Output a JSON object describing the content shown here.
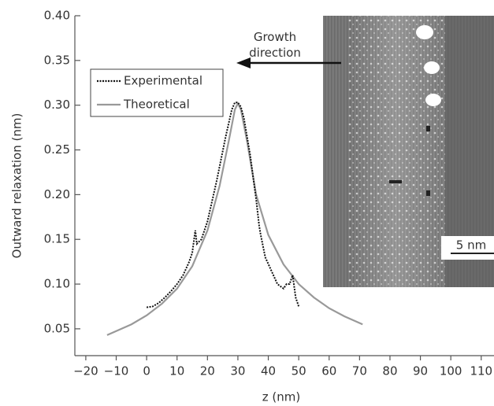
{
  "chart_data": {
    "type": "line",
    "xlabel": "z (nm)",
    "ylabel": "Outward relaxation (nm)",
    "xlim": [
      -23.6,
      114.2
    ],
    "ylim": [
      0.02,
      0.4
    ],
    "xticks": [
      {
        "value": -20,
        "label": "−20"
      },
      {
        "value": -10,
        "label": "−10"
      },
      0,
      10,
      20,
      30,
      40,
      50,
      60,
      70,
      80,
      90,
      100,
      110
    ],
    "yticks": [
      0.05,
      {
        "value": 0.1,
        "label": "0.10"
      },
      0.15,
      {
        "value": 0.2,
        "label": "0.20"
      },
      0.25,
      {
        "value": 0.3,
        "label": "0.30"
      },
      0.35,
      {
        "value": 0.4,
        "label": "0.40"
      }
    ],
    "legend": "upper left",
    "annotations": [
      "Growth direction",
      "5 nm"
    ],
    "series": [
      {
        "name": "Experimental",
        "color": "#111111",
        "style": "dotted",
        "x": [
          0,
          2,
          4,
          6,
          8,
          10,
          12,
          14,
          15,
          16,
          16.5,
          18,
          20,
          23,
          26,
          28,
          29,
          30,
          31,
          32,
          34,
          36,
          37,
          37.5,
          39,
          41,
          43,
          45,
          46,
          47,
          48,
          49,
          50
        ],
        "values": [
          0.074,
          0.075,
          0.079,
          0.085,
          0.092,
          0.1,
          0.11,
          0.125,
          0.135,
          0.16,
          0.145,
          0.15,
          0.17,
          0.215,
          0.265,
          0.295,
          0.303,
          0.303,
          0.298,
          0.285,
          0.245,
          0.195,
          0.165,
          0.155,
          0.13,
          0.115,
          0.1,
          0.095,
          0.1,
          0.1,
          0.11,
          0.085,
          0.075
        ]
      },
      {
        "name": "Theoretical",
        "color": "#999999",
        "style": "solid",
        "x": [
          -13,
          -5,
          0,
          5,
          10,
          15,
          20,
          24,
          27,
          29,
          30,
          31,
          33,
          36,
          40,
          45,
          50,
          55,
          60,
          65,
          71
        ],
        "values": [
          0.043,
          0.055,
          0.065,
          0.078,
          0.095,
          0.12,
          0.16,
          0.21,
          0.26,
          0.295,
          0.302,
          0.295,
          0.26,
          0.2,
          0.155,
          0.122,
          0.1,
          0.085,
          0.073,
          0.064,
          0.055
        ]
      }
    ]
  }
}
